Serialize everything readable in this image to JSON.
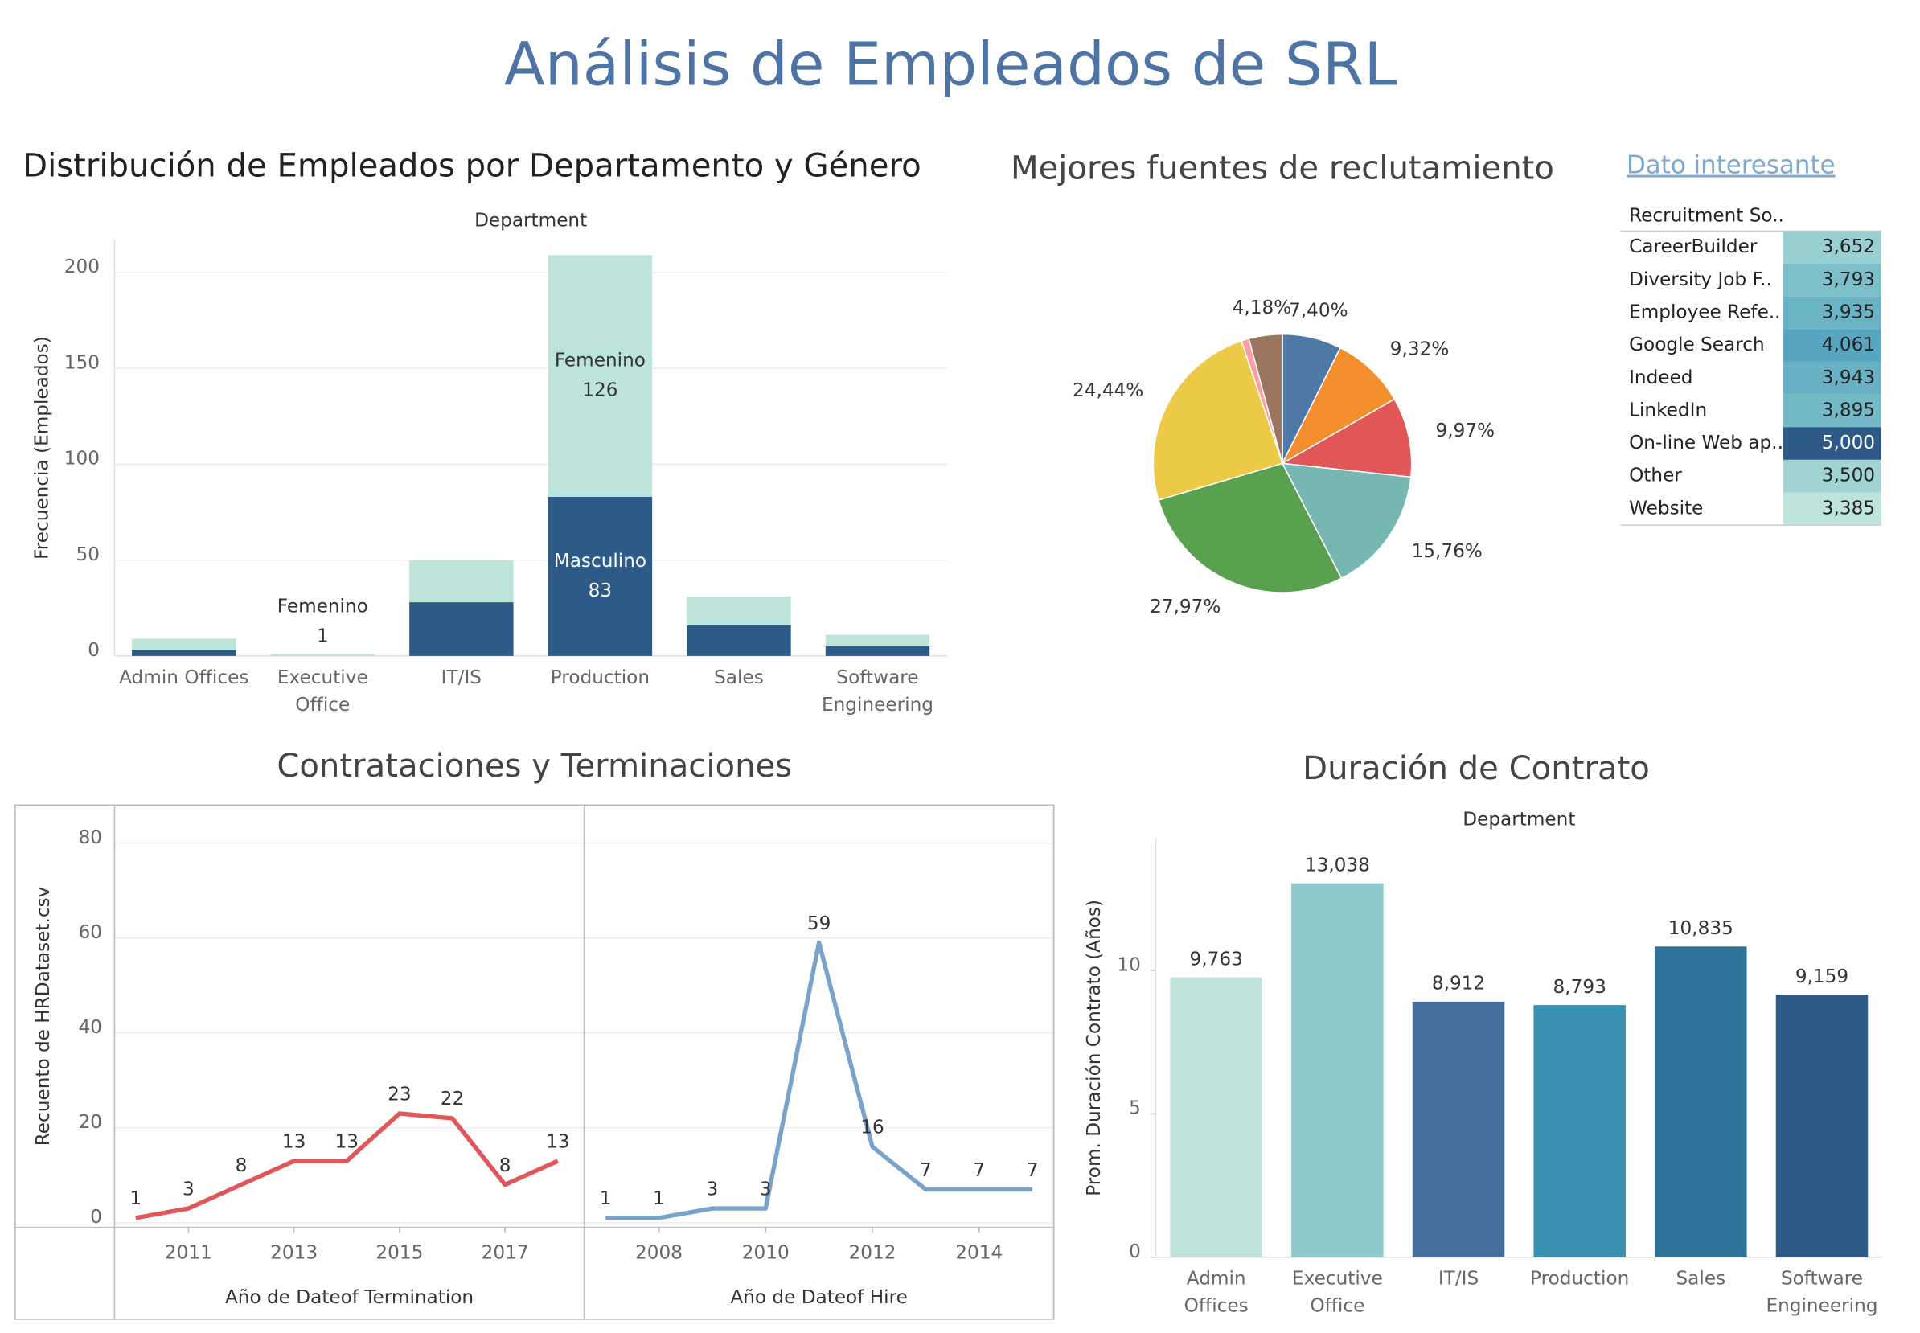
{
  "title": "Análisis de Empleados de SRL",
  "link": "Dato interesante",
  "chart_data": [
    {
      "type": "bar",
      "title": "Distribución de Empleados por Departamento y Género",
      "header": "Department",
      "ylabel": "Frecuencia (Empleados)",
      "categories": [
        "Admin Offices",
        "Executive Office",
        "IT/IS",
        "Production",
        "Sales",
        "Software Engineering"
      ],
      "series": [
        {
          "name": "Masculino",
          "color": "#2e5a87",
          "values": [
            3,
            0,
            28,
            83,
            16,
            5
          ],
          "value_labels": [
            null,
            null,
            null,
            "83",
            null,
            null
          ]
        },
        {
          "name": "Femenino",
          "color": "#bde4da",
          "values": [
            6,
            1,
            22,
            126,
            15,
            6
          ],
          "value_labels": [
            null,
            "1",
            null,
            "126",
            null,
            null
          ]
        }
      ],
      "ylim": [
        0,
        217
      ],
      "yticks": [
        0,
        50,
        100,
        150,
        200
      ],
      "grid": true
    },
    {
      "type": "pie",
      "title": "Mejores fuentes de reclutamiento",
      "values": [
        7.4,
        9.32,
        9.97,
        15.76,
        27.97,
        24.44,
        0.96,
        4.18
      ],
      "value_labels": [
        "7,40%",
        "9,32%",
        "9,97%",
        "15,76%",
        "27,97%",
        "24,44%",
        null,
        "4,18%"
      ],
      "colors": [
        "#4e79a7",
        "#f28e2b",
        "#e15759",
        "#76b7b2",
        "#59a14f",
        "#edc948",
        "#ff9da7",
        "#9c755f"
      ]
    },
    {
      "type": "line",
      "title": "Contrataciones y Terminaciones",
      "ylabel": "Recuento de HRDataset.csv",
      "ylim": [
        -1,
        88
      ],
      "yticks": [
        0,
        20,
        40,
        60,
        80
      ],
      "grid": true,
      "panels": [
        {
          "xlabel": "Año de Dateof Termination",
          "color": "#e15759",
          "x": [
            2010,
            2011,
            2012,
            2013,
            2014,
            2015,
            2016,
            2017,
            2018
          ],
          "values": [
            1,
            3,
            8,
            13,
            13,
            23,
            22,
            8,
            13
          ],
          "xlim": [
            2009.6,
            2018.5
          ],
          "xticks": [
            2011,
            2013,
            2015,
            2017
          ]
        },
        {
          "xlabel": "Año de Dateof Hire",
          "color": "#79a3c9",
          "x": [
            2007,
            2008,
            2009,
            2010,
            2011,
            2012,
            2013,
            2014,
            2015
          ],
          "values": [
            1,
            1,
            3,
            3,
            59,
            16,
            7,
            7,
            7
          ],
          "xlim": [
            2006.6,
            2015.4
          ],
          "xticks": [
            2008,
            2010,
            2012,
            2014
          ]
        }
      ]
    },
    {
      "type": "bar",
      "title": "Duración de Contrato",
      "header": "Department",
      "ylabel": "Prom. Duración Contrato (Años)",
      "categories": [
        "Admin Offices",
        "Executive Office",
        "IT/IS",
        "Production",
        "Sales",
        "Software Engineering"
      ],
      "values": [
        9.763,
        13.038,
        8.912,
        8.793,
        10.835,
        9.159
      ],
      "value_labels": [
        "9,763",
        "13,038",
        "8,912",
        "8,793",
        "10,835",
        "9,159"
      ],
      "colors": [
        "#bde4da",
        "#8ec9cb",
        "#466e9c",
        "#3a90b0",
        "#30739a",
        "#2e5a87"
      ],
      "ylim": [
        0,
        14.6
      ],
      "yticks": [
        0,
        5,
        10
      ],
      "grid": false
    }
  ],
  "table": {
    "header": "Recruitment So..",
    "rows": [
      [
        "CareerBuilder",
        "3,652"
      ],
      [
        "Diversity Job F..",
        "3,793"
      ],
      [
        "Employee Refe..",
        "3,935"
      ],
      [
        "Google Search",
        "4,061"
      ],
      [
        "Indeed",
        "3,943"
      ],
      [
        "LinkedIn",
        "3,895"
      ],
      [
        "On-line Web ap..",
        "5,000"
      ],
      [
        "Other",
        "3,500"
      ],
      [
        "Website",
        "3,385"
      ]
    ],
    "cell_colors": [
      "#9acfd2",
      "#7cbfc9",
      "#6ab3c5",
      "#58a6bf",
      "#68b1c4",
      "#74b9c7",
      "#2e5a87",
      "#a2d3d3",
      "#bde4da"
    ]
  }
}
